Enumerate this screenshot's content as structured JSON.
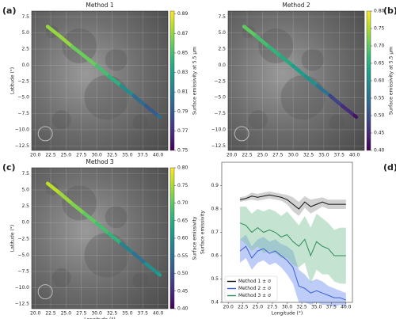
{
  "chart_data": [
    {
      "type": "map",
      "panel_label": "(a)",
      "title": "Method 1",
      "y_label": "Latitude (°)",
      "colorbar_label": "Surface emissivity at 5.5 μm",
      "x": [
        22,
        24,
        26,
        28,
        30,
        32,
        34,
        36,
        38,
        40
      ],
      "y": [
        6.0,
        4.5,
        2.9,
        1.4,
        -0.1,
        -1.7,
        -3.2,
        -4.7,
        -6.3,
        -7.8
      ],
      "values": [
        0.87,
        0.87,
        0.86,
        0.86,
        0.85,
        0.84,
        0.82,
        0.8,
        0.79,
        0.8
      ],
      "xlim": [
        19.4,
        41.6
      ],
      "ylim": [
        -13.2,
        8.4
      ],
      "clim": [
        0.75,
        0.893
      ],
      "grid": true,
      "colormap": [
        "#440154",
        "#482878",
        "#3e4989",
        "#31688e",
        "#26828e",
        "#1f9e89",
        "#35b779",
        "#6ece58",
        "#b5de2b",
        "#fde725"
      ],
      "xticks": [
        {
          "value": 20,
          "label": "20.0"
        },
        22.5,
        {
          "value": 25,
          "label": "25.0"
        },
        27.5,
        {
          "value": 30,
          "label": "30.0"
        },
        32.5,
        {
          "value": 35,
          "label": "35.0"
        },
        37.5,
        {
          "value": 40,
          "label": "40.0"
        }
      ],
      "yticks": [
        7.5,
        {
          "value": 5,
          "label": "5.0"
        },
        2.5,
        {
          "value": 0,
          "label": "0.0"
        },
        {
          "value": -2.5,
          "label": "−2.5"
        },
        {
          "value": -5,
          "label": "−5.0"
        },
        {
          "value": -7.5,
          "label": "−7.5"
        },
        {
          "value": -10,
          "label": "−10.0"
        },
        {
          "value": -12.5,
          "label": "−12.5"
        }
      ],
      "cticks": [
        0.75,
        0.77,
        0.79,
        0.81,
        0.83,
        0.85,
        0.87,
        0.89
      ]
    },
    {
      "type": "map",
      "panel_label": "(b)",
      "title": "Method 2",
      "colorbar_label": "Surface emissivity at 5.5 μm",
      "x": [
        22,
        24,
        26,
        28,
        30,
        32,
        34,
        36,
        38,
        40
      ],
      "y": [
        6.0,
        4.5,
        2.9,
        1.4,
        -0.1,
        -1.7,
        -3.2,
        -4.7,
        -6.3,
        -7.8
      ],
      "values": [
        0.7,
        0.68,
        0.66,
        0.64,
        0.62,
        0.6,
        0.55,
        0.48,
        0.45,
        0.42
      ],
      "xlim": [
        19.4,
        41.6
      ],
      "ylim": [
        -13.2,
        8.4
      ],
      "clim": [
        0.4,
        0.8
      ],
      "grid": true,
      "colormap": [
        "#440154",
        "#482878",
        "#3e4989",
        "#31688e",
        "#26828e",
        "#1f9e89",
        "#35b779",
        "#6ece58",
        "#b5de2b",
        "#fde725"
      ],
      "xticks": [
        {
          "value": 20,
          "label": "20.0"
        },
        22.5,
        {
          "value": 25,
          "label": "25.0"
        },
        27.5,
        {
          "value": 30,
          "label": "30.0"
        },
        32.5,
        {
          "value": 35,
          "label": "35.0"
        },
        37.5,
        {
          "value": 40,
          "label": "40.0"
        }
      ],
      "yticks": [
        7.5,
        {
          "value": 5,
          "label": "5.0"
        },
        2.5,
        {
          "value": 0,
          "label": "0.0"
        },
        {
          "value": -2.5,
          "label": "−2.5"
        },
        {
          "value": -5,
          "label": "−5.0"
        },
        {
          "value": -7.5,
          "label": "−7.5"
        },
        {
          "value": -10,
          "label": "−10.0"
        },
        {
          "value": -12.5,
          "label": "−12.5"
        }
      ],
      "cticks": [
        {
          "value": 0.4,
          "label": "0.40"
        },
        0.45,
        {
          "value": 0.5,
          "label": "0.50"
        },
        0.55,
        {
          "value": 0.6,
          "label": "0.60"
        },
        0.65,
        {
          "value": 0.7,
          "label": "0.70"
        },
        0.75,
        {
          "value": 0.8,
          "label": "0.80"
        }
      ]
    },
    {
      "type": "map",
      "panel_label": "(c)",
      "title": "Method 3",
      "y_label": "Latitude (°)",
      "x_label": "Longitude (°)",
      "colorbar_label": "Surface emissivity",
      "x": [
        22,
        24,
        26,
        28,
        30,
        32,
        34,
        36,
        38,
        40
      ],
      "y": [
        6.0,
        4.5,
        2.9,
        1.4,
        -0.1,
        -1.7,
        -3.2,
        -4.7,
        -6.3,
        -7.8
      ],
      "values": [
        0.76,
        0.74,
        0.72,
        0.7,
        0.68,
        0.66,
        0.58,
        0.55,
        0.6,
        0.62
      ],
      "xlim": [
        19.4,
        41.6
      ],
      "ylim": [
        -13.2,
        8.4
      ],
      "clim": [
        0.4,
        0.8
      ],
      "grid": true,
      "colormap": [
        "#440154",
        "#482878",
        "#3e4989",
        "#31688e",
        "#26828e",
        "#1f9e89",
        "#35b779",
        "#6ece58",
        "#b5de2b",
        "#fde725"
      ],
      "xticks": [
        {
          "value": 20,
          "label": "20.0"
        },
        22.5,
        {
          "value": 25,
          "label": "25.0"
        },
        27.5,
        {
          "value": 30,
          "label": "30.0"
        },
        32.5,
        {
          "value": 35,
          "label": "35.0"
        },
        37.5,
        {
          "value": 40,
          "label": "40.0"
        }
      ],
      "yticks": [
        7.5,
        {
          "value": 5,
          "label": "5.0"
        },
        2.5,
        {
          "value": 0,
          "label": "0.0"
        },
        {
          "value": -2.5,
          "label": "−2.5"
        },
        {
          "value": -5,
          "label": "−5.0"
        },
        {
          "value": -7.5,
          "label": "−7.5"
        },
        {
          "value": -10,
          "label": "−10.0"
        },
        {
          "value": -12.5,
          "label": "−12.5"
        }
      ],
      "cticks": [
        {
          "value": 0.4,
          "label": "0.40"
        },
        0.45,
        {
          "value": 0.5,
          "label": "0.50"
        },
        0.55,
        {
          "value": 0.6,
          "label": "0.60"
        },
        0.65,
        {
          "value": 0.7,
          "label": "0.70"
        },
        0.75,
        {
          "value": 0.8,
          "label": "0.80"
        }
      ]
    },
    {
      "type": "line",
      "panel_label": "(d)",
      "x_label": "Longitude (°)",
      "y_label": "Surface emissivity",
      "x": [
        22,
        23,
        24,
        25,
        26,
        27,
        28,
        29,
        30,
        31,
        32,
        33,
        34,
        35,
        36,
        37,
        38,
        39,
        40
      ],
      "series": [
        {
          "name": "Method 1 ± σ",
          "color": "#111111",
          "band_color": "#999999",
          "values": [
            0.84,
            0.845,
            0.855,
            0.85,
            0.855,
            0.86,
            0.855,
            0.85,
            0.84,
            0.82,
            0.8,
            0.83,
            0.81,
            0.82,
            0.83,
            0.82,
            0.82,
            0.82,
            0.82
          ],
          "errors": [
            0.01,
            0.01,
            0.015,
            0.015,
            0.015,
            0.015,
            0.015,
            0.015,
            0.02,
            0.03,
            0.03,
            0.025,
            0.03,
            0.025,
            0.02,
            0.02,
            0.02,
            0.02,
            0.02
          ]
        },
        {
          "name": "Method 2 ± σ",
          "color": "#3b5fd6",
          "band_color": "#6f8ef0",
          "values": [
            0.62,
            0.64,
            0.59,
            0.62,
            0.63,
            0.61,
            0.62,
            0.6,
            0.58,
            0.55,
            0.47,
            0.46,
            0.44,
            0.45,
            0.44,
            0.43,
            0.42,
            0.42,
            0.41
          ],
          "errors": [
            0.05,
            0.05,
            0.05,
            0.05,
            0.05,
            0.05,
            0.05,
            0.05,
            0.06,
            0.07,
            0.07,
            0.06,
            0.05,
            0.05,
            0.05,
            0.04,
            0.04,
            0.03,
            0.03
          ]
        },
        {
          "name": "Method 3 ± σ",
          "color": "#2e8b57",
          "band_color": "#7cc49a",
          "values": [
            0.74,
            0.73,
            0.7,
            0.72,
            0.7,
            0.71,
            0.7,
            0.68,
            0.69,
            0.66,
            0.64,
            0.67,
            0.6,
            0.66,
            0.64,
            0.63,
            0.6,
            0.6,
            0.6
          ],
          "errors": [
            0.07,
            0.08,
            0.08,
            0.08,
            0.09,
            0.09,
            0.09,
            0.09,
            0.1,
            0.1,
            0.09,
            0.1,
            0.12,
            0.12,
            0.12,
            0.11,
            0.11,
            0.12,
            0.12
          ]
        }
      ],
      "xlim": [
        18.9,
        41.1
      ],
      "ylim": [
        0.4,
        1.0
      ],
      "legend": "lower left",
      "xticks": [
        {
          "value": 20,
          "label": "20.0"
        },
        22.5,
        {
          "value": 25,
          "label": "25.0"
        },
        27.5,
        {
          "value": 30,
          "label": "30.0"
        },
        32.5,
        {
          "value": 35,
          "label": "35.0"
        },
        37.5,
        {
          "value": 40,
          "label": "40.0"
        }
      ],
      "yticks": [
        0.4,
        0.5,
        0.6,
        0.7,
        0.8,
        0.9
      ]
    }
  ]
}
